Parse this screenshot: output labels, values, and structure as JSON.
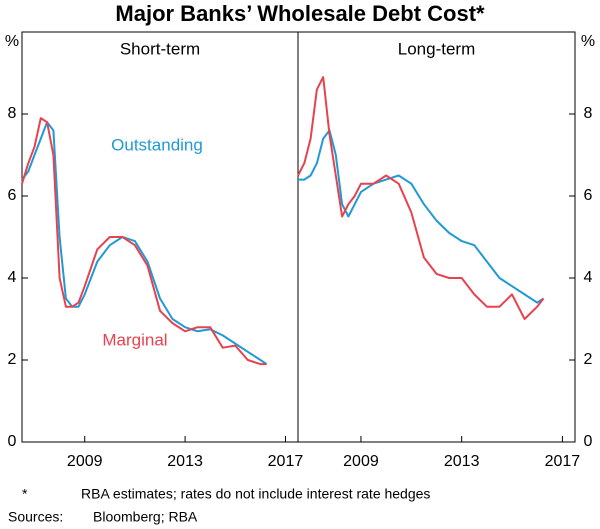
{
  "title": "Major Banks’ Wholesale Debt Cost*",
  "footnote_mark": "*",
  "footnote": "RBA estimates; rates do not include interest rate hedges",
  "sources_label": "Sources:",
  "sources": "Bloomberg; RBA",
  "chart_data": [
    {
      "type": "line",
      "title": "Short-term",
      "y_label": "%",
      "x": [
        2006.5,
        2006.75,
        2007.0,
        2007.25,
        2007.5,
        2007.75,
        2008.0,
        2008.25,
        2008.5,
        2008.75,
        2009.0,
        2009.5,
        2010.0,
        2010.5,
        2011.0,
        2011.5,
        2012.0,
        2012.5,
        2013.0,
        2013.5,
        2014.0,
        2014.5,
        2015.0,
        2015.5,
        2016.0,
        2016.25
      ],
      "xlim": [
        2006.5,
        2017.5
      ],
      "xticks": [
        2009,
        2013,
        2017
      ],
      "ylim": [
        0,
        10
      ],
      "yticks": [
        0,
        2,
        4,
        6,
        8
      ],
      "series": [
        {
          "name": "Outstanding",
          "color": "#1f9ad6",
          "values": [
            6.4,
            6.6,
            7.0,
            7.4,
            7.8,
            7.6,
            5.0,
            3.5,
            3.3,
            3.3,
            3.6,
            4.4,
            4.8,
            5.0,
            4.9,
            4.4,
            3.5,
            3.0,
            2.8,
            2.7,
            2.75,
            2.6,
            2.4,
            2.2,
            2.0,
            1.9
          ]
        },
        {
          "name": "Marginal",
          "color": "#e8424e",
          "values": [
            6.3,
            6.8,
            7.2,
            7.9,
            7.8,
            7.0,
            4.0,
            3.3,
            3.3,
            3.4,
            3.8,
            4.7,
            5.0,
            5.0,
            4.8,
            4.3,
            3.2,
            2.9,
            2.7,
            2.8,
            2.8,
            2.3,
            2.35,
            2.0,
            1.9,
            1.9
          ]
        }
      ]
    },
    {
      "type": "line",
      "title": "Long-term",
      "y_label": "%",
      "x": [
        2006.5,
        2006.75,
        2007.0,
        2007.25,
        2007.5,
        2007.75,
        2008.0,
        2008.25,
        2008.5,
        2008.75,
        2009.0,
        2009.5,
        2010.0,
        2010.5,
        2011.0,
        2011.5,
        2012.0,
        2012.5,
        2013.0,
        2013.5,
        2014.0,
        2014.5,
        2015.0,
        2015.5,
        2016.0,
        2016.25
      ],
      "xlim": [
        2006.5,
        2017.5
      ],
      "xticks": [
        2009,
        2013,
        2017
      ],
      "ylim": [
        0,
        10
      ],
      "yticks": [
        0,
        2,
        4,
        6,
        8
      ],
      "series": [
        {
          "color": "#1f9ad6",
          "values": [
            6.4,
            6.4,
            6.5,
            6.8,
            7.4,
            7.6,
            7.0,
            5.8,
            5.5,
            5.8,
            6.1,
            6.3,
            6.4,
            6.5,
            6.3,
            5.8,
            5.4,
            5.1,
            4.9,
            4.8,
            4.4,
            4.0,
            3.8,
            3.6,
            3.4,
            3.5
          ]
        },
        {
          "color": "#e8424e",
          "values": [
            6.5,
            6.8,
            7.4,
            8.6,
            8.9,
            7.5,
            6.5,
            5.5,
            5.8,
            6.0,
            6.3,
            6.3,
            6.5,
            6.3,
            5.6,
            4.5,
            4.1,
            4.0,
            4.0,
            3.6,
            3.3,
            3.3,
            3.6,
            3.0,
            3.3,
            3.5
          ]
        }
      ]
    }
  ]
}
